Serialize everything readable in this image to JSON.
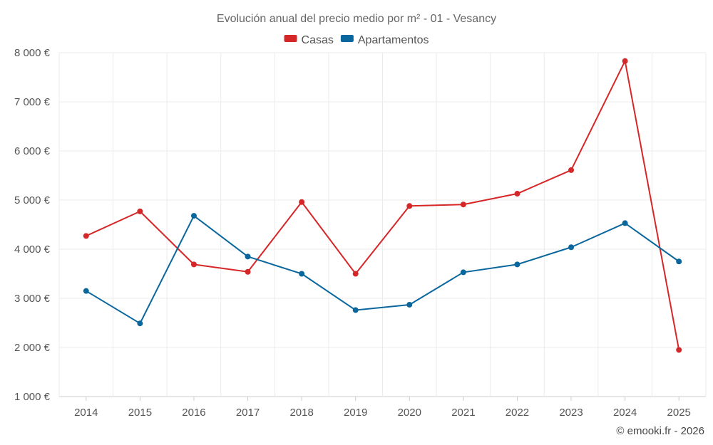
{
  "chart_data": {
    "type": "line",
    "title": "Evolución anual del precio medio por m² - 01 - Vesancy",
    "categories": [
      "2014",
      "2015",
      "2016",
      "2017",
      "2018",
      "2019",
      "2020",
      "2021",
      "2022",
      "2023",
      "2024",
      "2025"
    ],
    "series": [
      {
        "name": "Casas",
        "color": "#d62728",
        "values": [
          4270,
          4770,
          3690,
          3540,
          4960,
          3500,
          4880,
          4910,
          5130,
          5610,
          7830,
          1950
        ]
      },
      {
        "name": "Apartamentos",
        "color": "#0a679d",
        "values": [
          3150,
          2490,
          4680,
          3850,
          3500,
          2760,
          2870,
          3530,
          3690,
          4040,
          4530,
          3750
        ]
      }
    ],
    "ylim": [
      1000,
      8000
    ],
    "y_ticks": [
      1000,
      2000,
      3000,
      4000,
      5000,
      6000,
      7000,
      8000
    ],
    "y_tick_labels": [
      "1 000 €",
      "2 000 €",
      "3 000 €",
      "4 000 €",
      "5 000 €",
      "6 000 €",
      "7 000 €",
      "8 000 €"
    ],
    "xlabel": "",
    "ylabel": "",
    "grid": true,
    "legend": "top-center"
  },
  "credit": "© emooki.fr - 2026"
}
